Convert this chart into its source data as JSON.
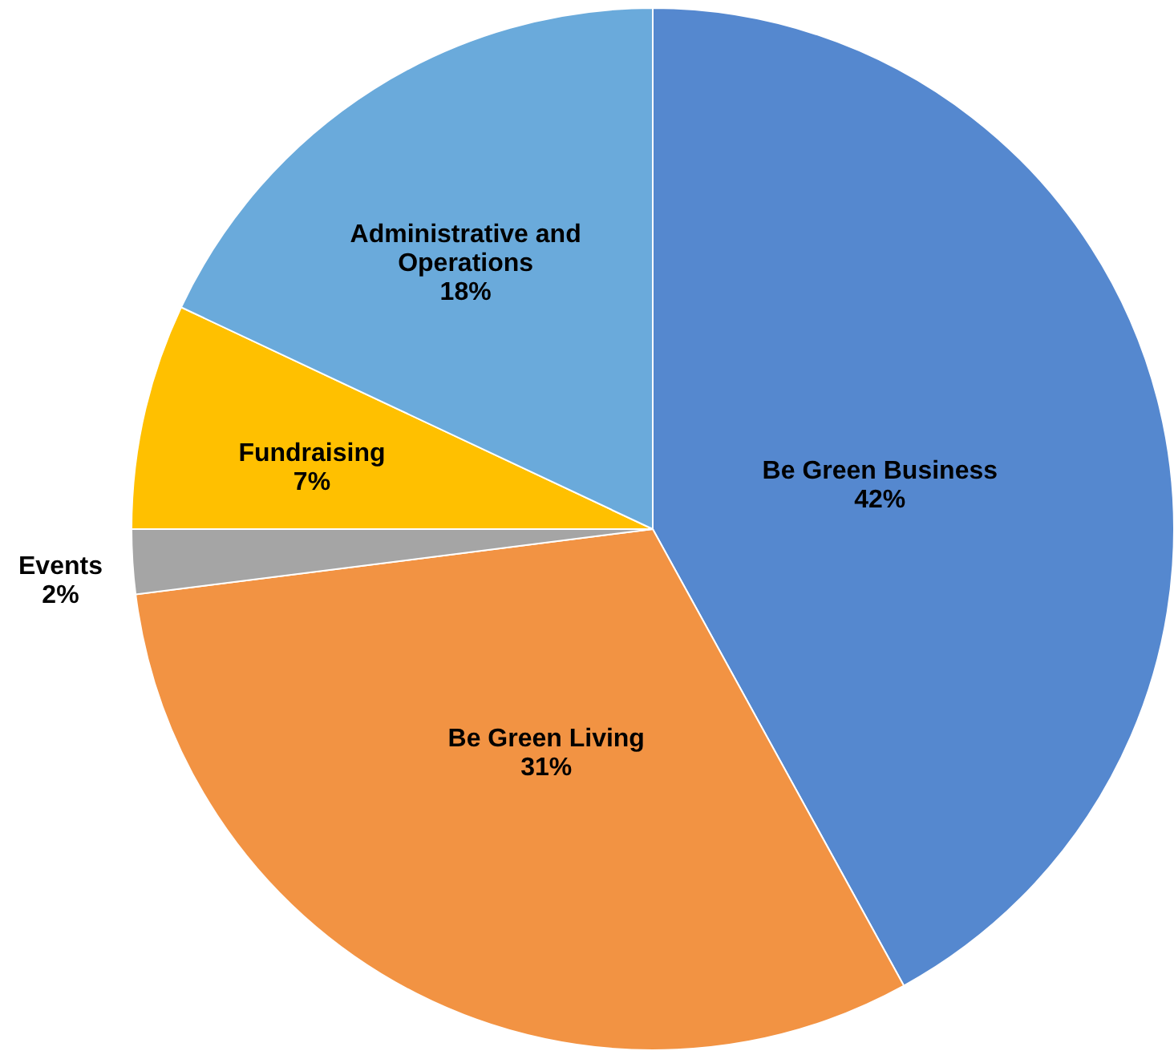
{
  "chart_data": {
    "type": "pie",
    "categories": [
      "Be Green Business",
      "Be Green Living",
      "Events",
      "Fundraising",
      "Administrative and Operations"
    ],
    "values": [
      42,
      31,
      2,
      7,
      18
    ],
    "colors": [
      "#5588cf",
      "#f29343",
      "#a5a5a5",
      "#ffc000",
      "#6aaadb"
    ],
    "value_labels": [
      "42%",
      "31%",
      "2%",
      "7%",
      "18%"
    ]
  }
}
